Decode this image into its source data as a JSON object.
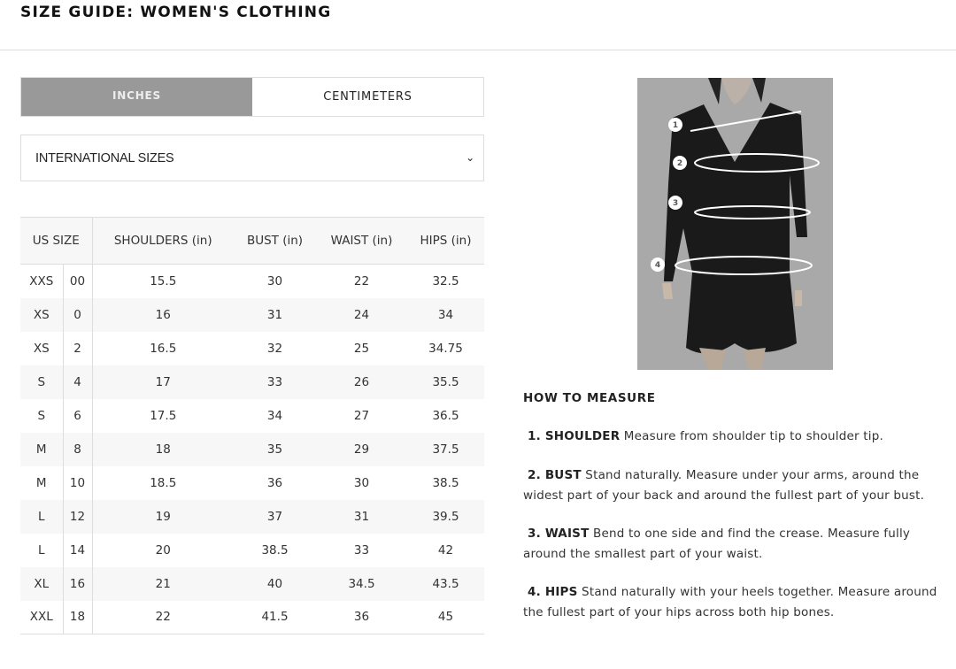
{
  "header": {
    "title": "SIZE GUIDE: WOMEN'S CLOTHING"
  },
  "units": {
    "tabs": [
      {
        "label": "INCHES",
        "active": true
      },
      {
        "label": "CENTIMETERS",
        "active": false
      }
    ]
  },
  "size_system": {
    "selected": "INTERNATIONAL SIZES"
  },
  "table": {
    "headers": [
      "US SIZE",
      "SHOULDERS (in)",
      "BUST (in)",
      "WAIST (in)",
      "HIPS (in)"
    ],
    "rows": [
      [
        "XXS",
        "00",
        "15.5",
        "30",
        "22",
        "32.5"
      ],
      [
        "XS",
        "0",
        "16",
        "31",
        "24",
        "34"
      ],
      [
        "XS",
        "2",
        "16.5",
        "32",
        "25",
        "34.75"
      ],
      [
        "S",
        "4",
        "17",
        "33",
        "26",
        "35.5"
      ],
      [
        "S",
        "6",
        "17.5",
        "34",
        "27",
        "36.5"
      ],
      [
        "M",
        "8",
        "18",
        "35",
        "29",
        "37.5"
      ],
      [
        "M",
        "10",
        "18.5",
        "36",
        "30",
        "38.5"
      ],
      [
        "L",
        "12",
        "19",
        "37",
        "31",
        "39.5"
      ],
      [
        "L",
        "14",
        "20",
        "38.5",
        "33",
        "42"
      ],
      [
        "XL",
        "16",
        "21",
        "40",
        "34.5",
        "43.5"
      ],
      [
        "XXL",
        "18",
        "22",
        "41.5",
        "36",
        "45"
      ]
    ]
  },
  "figure": {
    "markers": [
      "1",
      "2",
      "3",
      "4"
    ]
  },
  "how_to": {
    "title": "HOW TO MEASURE",
    "steps": [
      {
        "label": "1. SHOULDER",
        "text": " Measure from shoulder tip to shoulder tip."
      },
      {
        "label": "2. BUST",
        "text": "  Stand naturally. Measure under your arms, around the widest part of your back and around the fullest part of your bust."
      },
      {
        "label": "3. WAIST",
        "text": " Bend to one side and find the crease. Measure fully around the smallest part of your waist."
      },
      {
        "label": "4. HIPS",
        "text": " Stand naturally with your heels together. Measure around the fullest part of your hips across both hip bones."
      }
    ]
  }
}
